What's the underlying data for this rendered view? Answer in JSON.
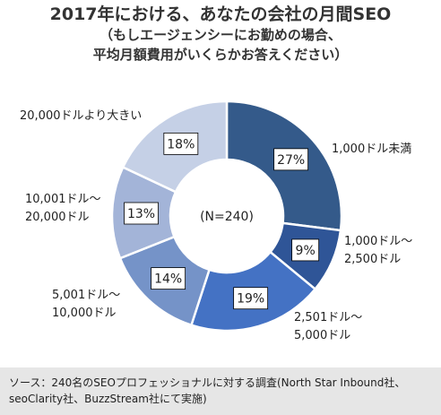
{
  "title": {
    "line1": "2017年における、あなたの会社の月間SEO",
    "line2": "（もしエージェンシーにお勤めの場合、",
    "line3": "平均月額費用がいくらかお答えください）"
  },
  "footer": {
    "line1": "ソース：240名のSEOプロフェッショナルに対する調査(North Star Inbound社、",
    "line2": "seoClarity社、BuzzStream社にて実施)"
  },
  "chart_data": {
    "type": "pie",
    "donut": true,
    "center_label": "(N=240)",
    "unit": "%",
    "slices": [
      {
        "label_lines": [
          "1,000ドル未満"
        ],
        "value": 27,
        "value_label": "27%",
        "color": "#345a8a"
      },
      {
        "label_lines": [
          "1,000ドル～",
          "2,500ドル"
        ],
        "value": 9,
        "value_label": "9%",
        "color": "#2f5597"
      },
      {
        "label_lines": [
          "2,501ドル～",
          "5,000ドル"
        ],
        "value": 19,
        "value_label": "19%",
        "color": "#4472c4"
      },
      {
        "label_lines": [
          "5,001ドル～",
          "10,000ドル"
        ],
        "value": 14,
        "value_label": "14%",
        "color": "#7593c8"
      },
      {
        "label_lines": [
          "10,001ドル～",
          "20,000ドル"
        ],
        "value": 13,
        "value_label": "13%",
        "color": "#a3b4d8"
      },
      {
        "label_lines": [
          "20,000ドルより大きい"
        ],
        "value": 18,
        "value_label": "18%",
        "color": "#c5d0e6"
      }
    ]
  }
}
